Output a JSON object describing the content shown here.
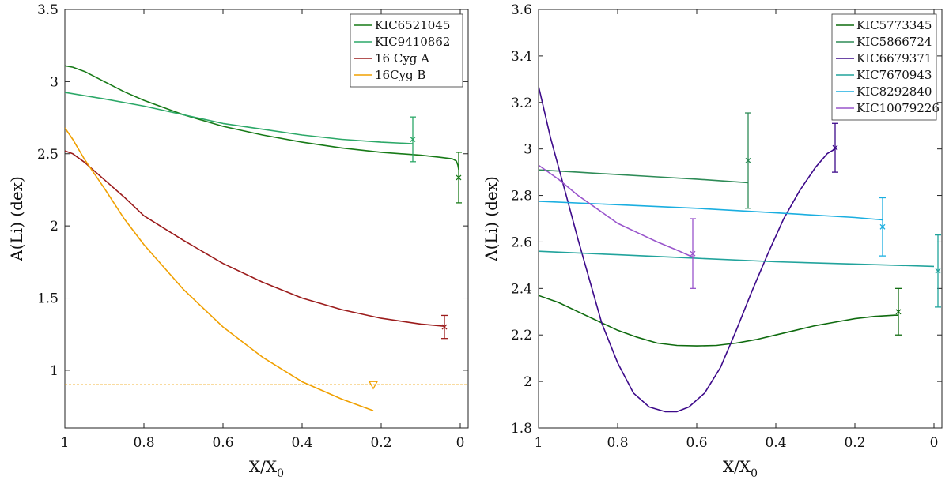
{
  "chart_data": [
    {
      "type": "line",
      "xlabel": "X/X",
      "xlabel_sub": "0",
      "ylabel": "A(Li) (dex)",
      "xlim": [
        1.0,
        -0.02
      ],
      "ylim": [
        0.6,
        3.5
      ],
      "x_ticks": [
        1,
        0.8,
        0.6,
        0.4,
        0.2,
        0
      ],
      "x_tick_labels": [
        "1",
        "0.8",
        "0.6",
        "0.4",
        "0.2",
        "0"
      ],
      "y_ticks": [
        1,
        1.5,
        2,
        2.5,
        3,
        3.5
      ],
      "y_tick_labels": [
        "1",
        "1.5",
        "2",
        "2.5",
        "3",
        "3.5"
      ],
      "grid": false,
      "legend_position": "top-right",
      "series": [
        {
          "name": "KIC6521045",
          "color": "#177a17",
          "x": [
            1.0,
            0.98,
            0.95,
            0.9,
            0.85,
            0.8,
            0.7,
            0.6,
            0.5,
            0.4,
            0.3,
            0.2,
            0.1,
            0.05,
            0.02,
            0.01,
            0.006,
            0.004
          ],
          "y": [
            3.11,
            3.1,
            3.07,
            3.0,
            2.93,
            2.87,
            2.77,
            2.69,
            2.63,
            2.58,
            2.54,
            2.51,
            2.49,
            2.475,
            2.465,
            2.45,
            2.42,
            2.39
          ],
          "observation": {
            "x": 0.004,
            "y": 2.335,
            "yerr": 0.175,
            "marker": "x"
          }
        },
        {
          "name": "KIC9410862",
          "color": "#2ca868",
          "x": [
            1.0,
            0.9,
            0.8,
            0.7,
            0.6,
            0.5,
            0.4,
            0.3,
            0.2,
            0.12
          ],
          "y": [
            2.925,
            2.88,
            2.83,
            2.77,
            2.71,
            2.67,
            2.63,
            2.6,
            2.58,
            2.57
          ],
          "observation": {
            "x": 0.12,
            "y": 2.6,
            "yerr": 0.155,
            "marker": "x"
          }
        },
        {
          "name": "16 Cyg A",
          "color": "#9b1b1b",
          "x": [
            1.0,
            0.98,
            0.95,
            0.9,
            0.85,
            0.8,
            0.7,
            0.6,
            0.5,
            0.4,
            0.3,
            0.2,
            0.1,
            0.04
          ],
          "y": [
            2.52,
            2.5,
            2.44,
            2.32,
            2.2,
            2.07,
            1.9,
            1.74,
            1.61,
            1.5,
            1.42,
            1.36,
            1.32,
            1.305
          ],
          "observation": {
            "x": 0.04,
            "y": 1.3,
            "yerr": 0.08,
            "marker": "x"
          }
        },
        {
          "name": "16Cyg B",
          "color": "#f0a000",
          "x": [
            1.0,
            0.98,
            0.95,
            0.9,
            0.85,
            0.8,
            0.7,
            0.6,
            0.5,
            0.4,
            0.3,
            0.22
          ],
          "y": [
            2.68,
            2.6,
            2.46,
            2.26,
            2.05,
            1.87,
            1.56,
            1.3,
            1.09,
            0.92,
            0.8,
            0.72
          ],
          "observation": {
            "x": 0.22,
            "y": 0.9,
            "marker": "triangle-down",
            "upper_limit_line": 0.9
          }
        }
      ]
    },
    {
      "type": "line",
      "xlabel": "X/X",
      "xlabel_sub": "0",
      "ylabel": "A(Li) (dex)",
      "xlim": [
        1.0,
        -0.02
      ],
      "ylim": [
        1.8,
        3.6
      ],
      "x_ticks": [
        1,
        0.8,
        0.6,
        0.4,
        0.2,
        0
      ],
      "x_tick_labels": [
        "1",
        "0.8",
        "0.6",
        "0.4",
        "0.2",
        "0"
      ],
      "y_ticks": [
        1.8,
        2,
        2.2,
        2.4,
        2.6,
        2.8,
        3,
        3.2,
        3.4,
        3.6
      ],
      "y_tick_labels": [
        "1.8",
        "2",
        "2.2",
        "2.4",
        "2.6",
        "2.8",
        "3",
        "3.2",
        "3.4",
        "3.6"
      ],
      "grid": false,
      "legend_position": "top-right",
      "series": [
        {
          "name": "KIC5773345",
          "color": "#0f6b0f",
          "x": [
            1.0,
            0.95,
            0.9,
            0.85,
            0.8,
            0.75,
            0.7,
            0.65,
            0.6,
            0.55,
            0.5,
            0.45,
            0.4,
            0.35,
            0.3,
            0.25,
            0.2,
            0.15,
            0.1,
            0.09
          ],
          "y": [
            2.37,
            2.34,
            2.3,
            2.26,
            2.22,
            2.19,
            2.165,
            2.155,
            2.153,
            2.155,
            2.165,
            2.18,
            2.2,
            2.22,
            2.24,
            2.255,
            2.27,
            2.28,
            2.285,
            2.285
          ],
          "observation": {
            "x": 0.09,
            "y": 2.3,
            "yerr": 0.1,
            "marker": "x"
          }
        },
        {
          "name": "KIC5866724",
          "color": "#2e8b57",
          "x": [
            1.0,
            0.9,
            0.8,
            0.7,
            0.6,
            0.47
          ],
          "y": [
            2.91,
            2.9,
            2.89,
            2.88,
            2.87,
            2.855
          ],
          "observation": {
            "x": 0.47,
            "y": 2.95,
            "yerr": 0.205,
            "marker": "x"
          }
        },
        {
          "name": "KIC6679371",
          "color": "#3d0a8a",
          "x": [
            1.0,
            0.97,
            0.93,
            0.9,
            0.87,
            0.84,
            0.8,
            0.76,
            0.72,
            0.68,
            0.65,
            0.62,
            0.58,
            0.54,
            0.5,
            0.46,
            0.42,
            0.38,
            0.34,
            0.3,
            0.27,
            0.25
          ],
          "y": [
            3.27,
            3.05,
            2.8,
            2.61,
            2.43,
            2.25,
            2.08,
            1.95,
            1.89,
            1.87,
            1.87,
            1.89,
            1.95,
            2.06,
            2.22,
            2.39,
            2.55,
            2.7,
            2.82,
            2.92,
            2.98,
            3.0
          ],
          "observation": {
            "x": 0.25,
            "y": 3.005,
            "yerr": 0.105,
            "marker": "x"
          }
        },
        {
          "name": "KIC7670943",
          "color": "#21a39c",
          "x": [
            1.0,
            0.8,
            0.6,
            0.4,
            0.2,
            0.0
          ],
          "y": [
            2.56,
            2.545,
            2.53,
            2.515,
            2.505,
            2.495
          ],
          "observation": {
            "x": -0.01,
            "y": 2.475,
            "yerr": 0.155,
            "marker": "x"
          }
        },
        {
          "name": "KIC8292840",
          "color": "#1aaee0",
          "x": [
            1.0,
            0.8,
            0.6,
            0.4,
            0.2,
            0.13
          ],
          "y": [
            2.775,
            2.76,
            2.745,
            2.725,
            2.705,
            2.695
          ],
          "observation": {
            "x": 0.13,
            "y": 2.665,
            "yerr": 0.125,
            "marker": "x"
          }
        },
        {
          "name": "KIC10079226",
          "color": "#9955cc",
          "x": [
            1.0,
            0.95,
            0.9,
            0.85,
            0.8,
            0.75,
            0.7,
            0.65,
            0.61
          ],
          "y": [
            2.93,
            2.87,
            2.8,
            2.74,
            2.68,
            2.64,
            2.6,
            2.565,
            2.535
          ],
          "observation": {
            "x": 0.61,
            "y": 2.55,
            "yerr": 0.15,
            "marker": "x"
          }
        }
      ]
    }
  ]
}
